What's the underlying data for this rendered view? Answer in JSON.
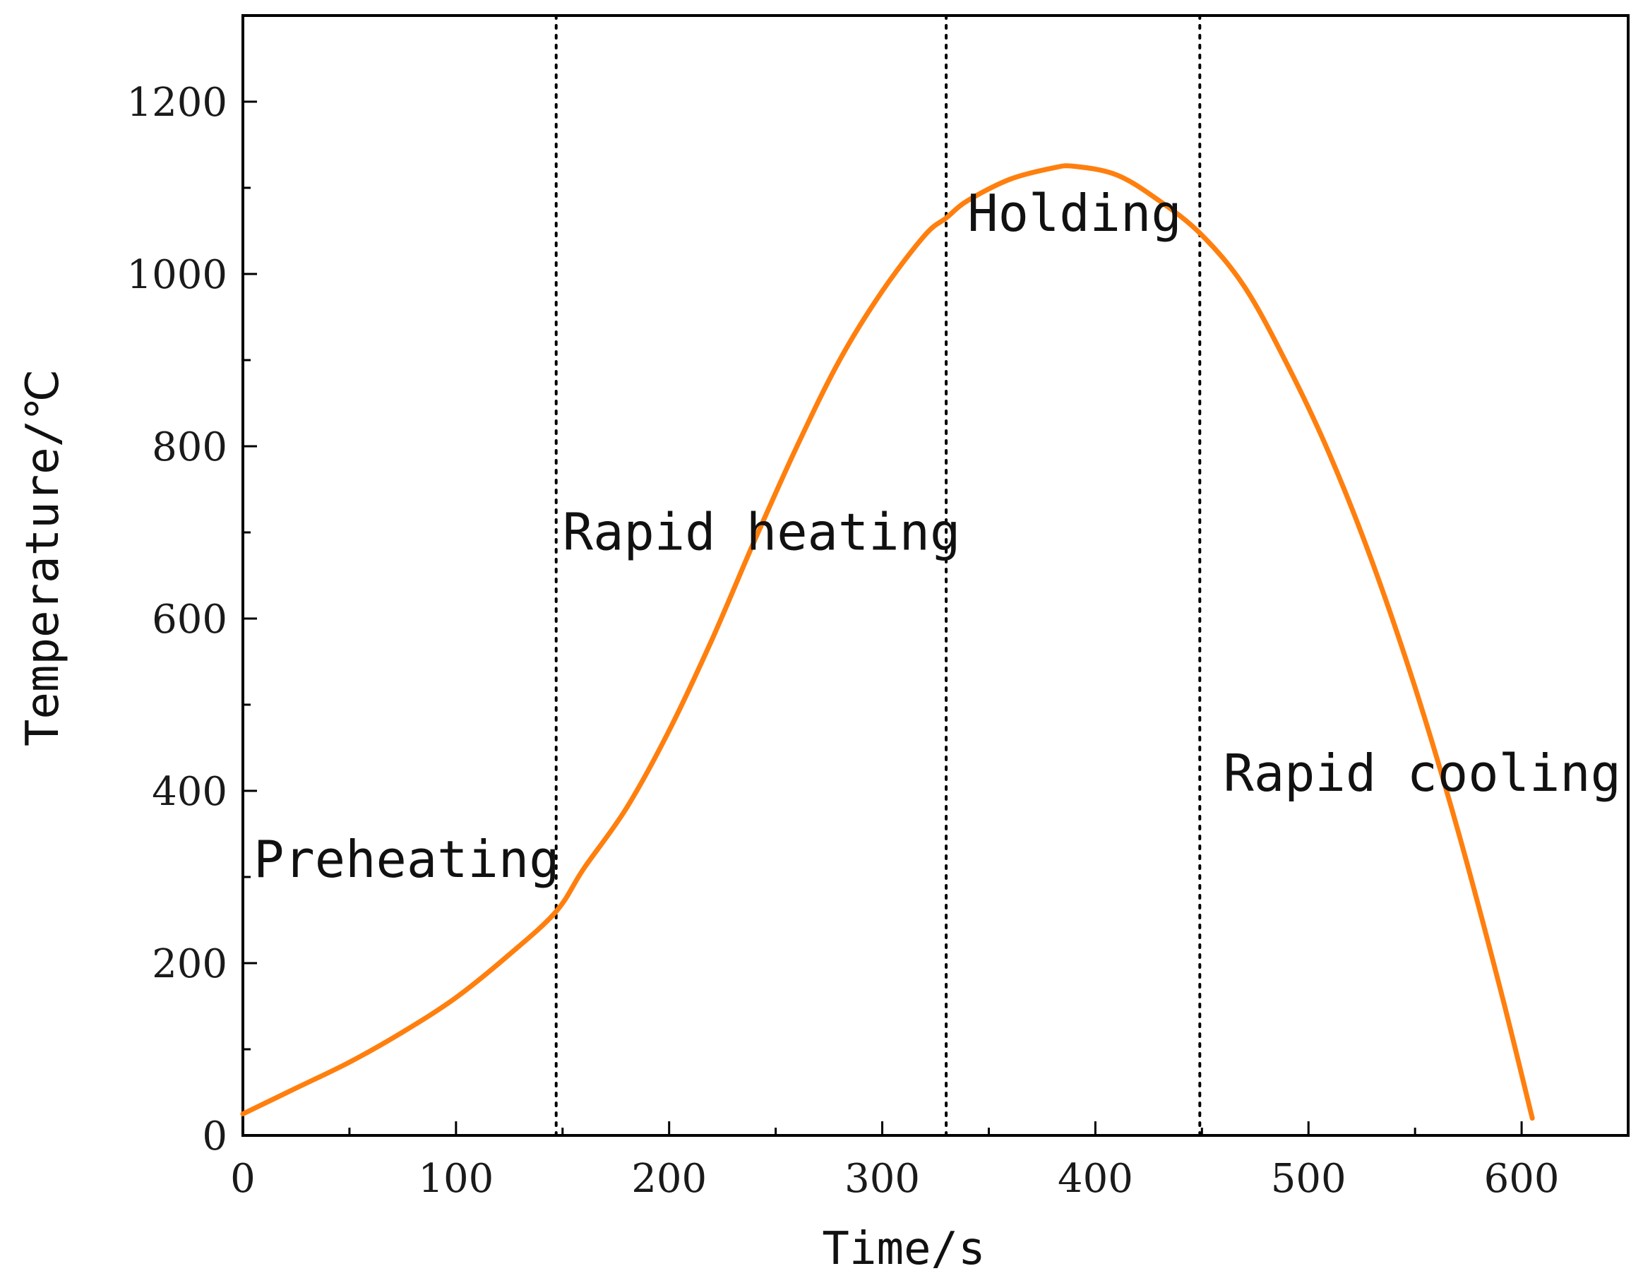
{
  "chart_data": {
    "type": "line",
    "title": "",
    "xlabel": "Time/s",
    "ylabel": "Temperature/℃",
    "xlim": [
      0,
      650
    ],
    "ylim": [
      0,
      1300
    ],
    "x_ticks": [
      0,
      100,
      200,
      300,
      400,
      500,
      600
    ],
    "y_ticks": [
      0,
      200,
      400,
      600,
      800,
      1000,
      1200
    ],
    "grid": false,
    "series": [
      {
        "color": "#ff7f0e",
        "x": [
          0,
          25,
          50,
          75,
          100,
          125,
          147,
          160,
          180,
          200,
          220,
          240,
          260,
          280,
          300,
          320,
          330,
          340,
          360,
          380,
          390,
          410,
          430,
          450,
          470,
          490,
          510,
          530,
          550,
          570,
          590,
          605
        ],
        "y": [
          25,
          55,
          85,
          120,
          160,
          210,
          260,
          310,
          380,
          470,
          575,
          690,
          800,
          900,
          980,
          1045,
          1065,
          1085,
          1110,
          1123,
          1125,
          1115,
          1085,
          1045,
          985,
          895,
          790,
          665,
          520,
          355,
          170,
          20
        ]
      }
    ],
    "phase_boundaries": [
      147,
      330,
      449
    ],
    "annotations": [
      {
        "text": "Preheating",
        "x": 5,
        "y": 300
      },
      {
        "text": "Rapid heating",
        "x": 150,
        "y": 680
      },
      {
        "text": "Holding",
        "x": 340,
        "y": 1050
      },
      {
        "text": "Rapid cooling",
        "x": 460,
        "y": 400
      }
    ]
  }
}
